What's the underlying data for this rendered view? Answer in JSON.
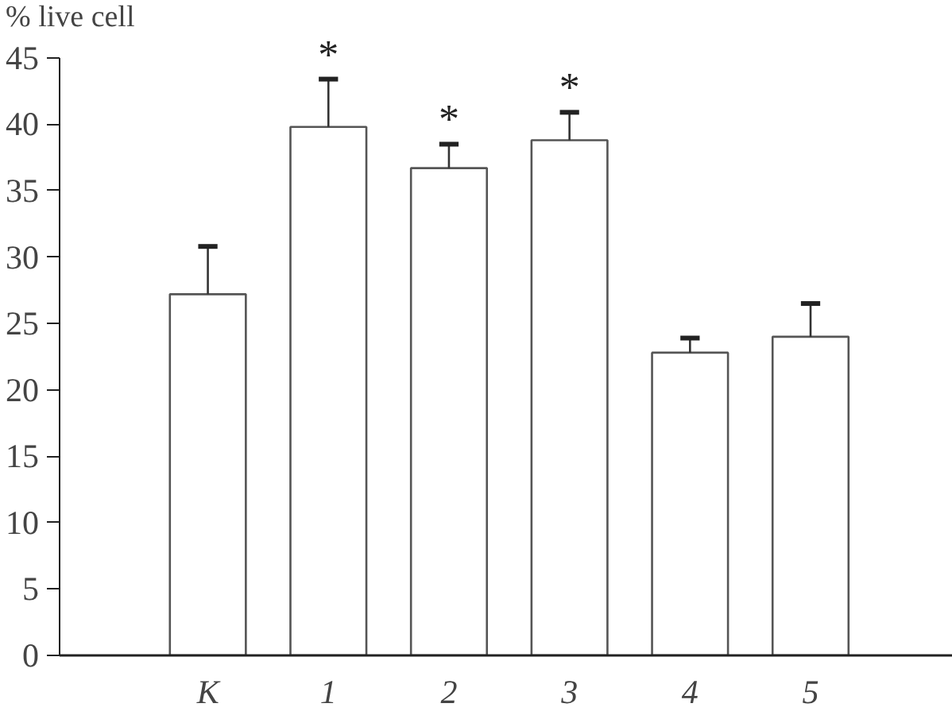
{
  "chart_data": {
    "type": "bar",
    "ylabel": "% live cell",
    "categories": [
      "К",
      "1",
      "2",
      "3",
      "4",
      "5"
    ],
    "values": [
      27.2,
      39.8,
      36.7,
      38.8,
      22.8,
      24.0
    ],
    "errors": [
      3.6,
      3.6,
      1.8,
      2.1,
      1.1,
      2.5
    ],
    "color": "#ffffff",
    "ylim": [
      0,
      45
    ],
    "yticks": [
      0,
      5,
      10,
      15,
      20,
      25,
      30,
      35,
      40,
      45
    ],
    "grid": false,
    "annotations": [
      {
        "text": "*",
        "x": "1",
        "y": 43.4
      },
      {
        "text": "*",
        "x": "2",
        "y": 38.5
      },
      {
        "text": "*",
        "x": "3",
        "y": 40.9
      }
    ]
  }
}
